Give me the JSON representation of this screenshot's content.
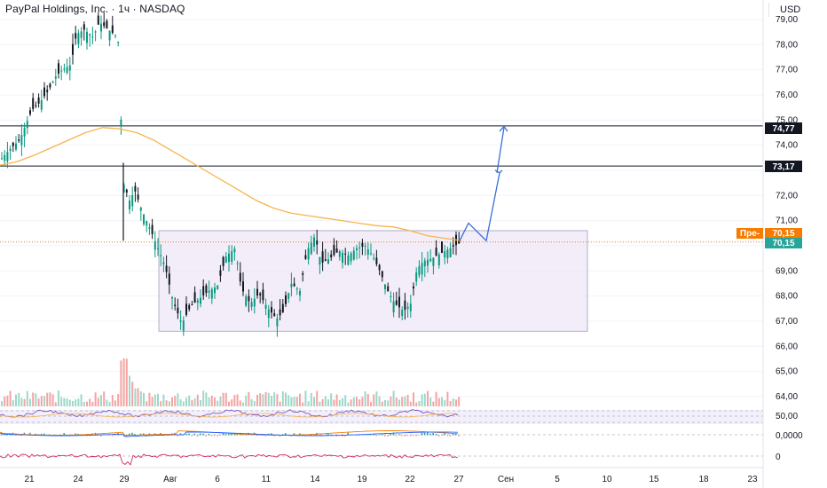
{
  "header": {
    "title": "PayPal Holdings, Inc. · 1ч · NASDAQ",
    "currency": "USD"
  },
  "price_axis": {
    "ticks": [
      "79,00",
      "78,00",
      "77,00",
      "76,00",
      "75,00",
      "74,00",
      "72,00",
      "71,00",
      "69,00",
      "68,00",
      "67,00",
      "66,00",
      "65,00",
      "64,00"
    ]
  },
  "date_axis": {
    "labels": [
      "21",
      "24",
      "29",
      "Авг",
      "6",
      "11",
      "14",
      "19",
      "22",
      "27",
      "Сен",
      "5",
      "10",
      "15",
      "18",
      "23"
    ]
  },
  "levels": {
    "upper": "74,77",
    "lower": "73,17"
  },
  "current_price": {
    "pre_label": "Пре-",
    "pre_value": "70,15",
    "value": "70,15"
  },
  "indicators": {
    "rsi_tick": "50,00",
    "macd_tick": "0,0000",
    "osc_tick": "0"
  },
  "colors": {
    "up": "#089981",
    "down": "#131722",
    "ma": "#f7b44e",
    "zone_fill": "#ede7f6",
    "zone_border": "#9e9fb8",
    "arrow": "#3a6fd8",
    "price_tag": "#26a69a",
    "pre_tag": "#f57c00"
  },
  "chart_data": {
    "type": "candlestick",
    "price_range": [
      63.5,
      79.6
    ],
    "ma_series": [
      73.2,
      73.35,
      73.6,
      73.9,
      74.2,
      74.5,
      74.7,
      74.65,
      74.5,
      74.2,
      73.8,
      73.4,
      73.0,
      72.6,
      72.2,
      71.8,
      71.5,
      71.3,
      71.2,
      71.1,
      71.0,
      70.9,
      70.8,
      70.75,
      70.6,
      70.4,
      70.3,
      70.2
    ],
    "consolidation_zone": {
      "low": 66.6,
      "high": 70.6
    },
    "projection": [
      70.2,
      70.9,
      70.2,
      72.9,
      74.7
    ]
  }
}
